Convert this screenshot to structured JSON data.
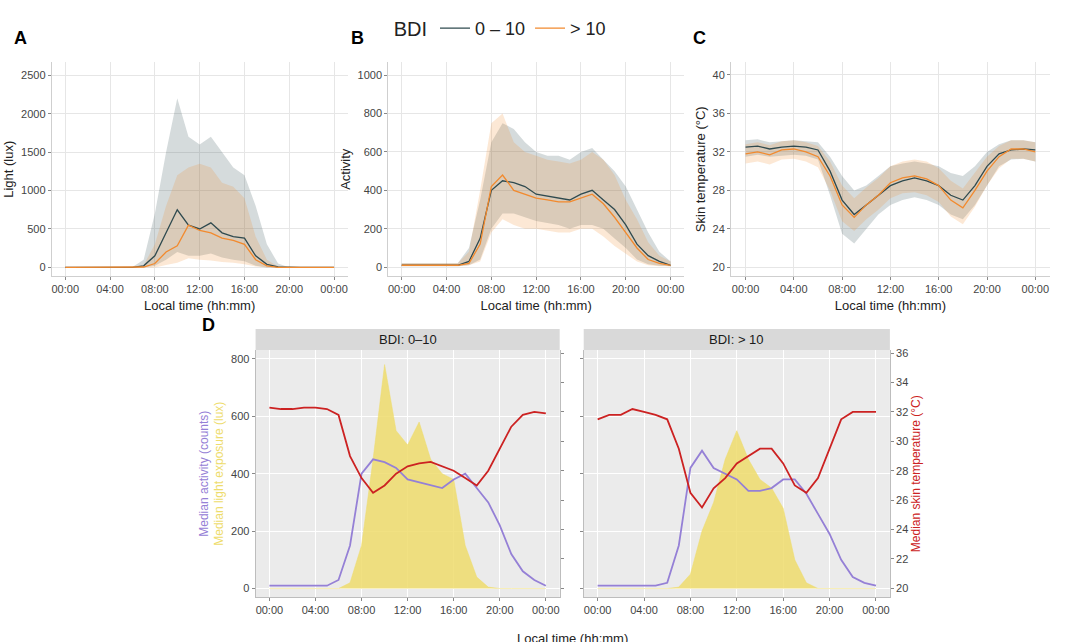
{
  "chart_data": [
    {
      "type": "line",
      "label": "A",
      "legend": "top",
      "legend_title": "BDI",
      "grid": true,
      "xlabel": "Local time (hh:mm)",
      "ylabel": "Light (lux)",
      "x": [
        0,
        1,
        2,
        3,
        4,
        5,
        6,
        7,
        8,
        9,
        10,
        11,
        12,
        13,
        14,
        15,
        16,
        17,
        18,
        19,
        20,
        21,
        22,
        23,
        24
      ],
      "xlim": [
        -1.2,
        25.2
      ],
      "xticks": [
        {
          "value": 0,
          "label": "00:00"
        },
        {
          "value": 4,
          "label": "04:00"
        },
        {
          "value": 8,
          "label": "08:00"
        },
        {
          "value": 12,
          "label": "12:00"
        },
        {
          "value": 16,
          "label": "16:00"
        },
        {
          "value": 20,
          "label": "20:00"
        },
        {
          "value": 24,
          "label": "00:00"
        }
      ],
      "ylim": [
        -115,
        2670
      ],
      "yticks": [
        0,
        500,
        1000,
        1500,
        2000,
        2500
      ],
      "series": [
        {
          "name": "0 – 10",
          "color": "#2f4a4f",
          "values": [
            0,
            0,
            0,
            0,
            0,
            0,
            0,
            20,
            150,
            450,
            750,
            550,
            500,
            580,
            450,
            400,
            380,
            150,
            40,
            5,
            0,
            0,
            0,
            0,
            0
          ],
          "lower": [
            0,
            0,
            0,
            0,
            0,
            0,
            0,
            0,
            20,
            100,
            200,
            150,
            150,
            180,
            130,
            100,
            80,
            20,
            0,
            0,
            0,
            0,
            0,
            0,
            0
          ],
          "upper": [
            0,
            0,
            0,
            0,
            0,
            0,
            5,
            100,
            700,
            1500,
            2200,
            1700,
            1600,
            1700,
            1500,
            1300,
            1200,
            800,
            300,
            50,
            0,
            0,
            0,
            0,
            0
          ]
        },
        {
          "name": "> 10",
          "color": "#f28a2e",
          "values": [
            0,
            0,
            0,
            0,
            0,
            0,
            0,
            5,
            50,
            200,
            280,
            550,
            480,
            450,
            380,
            350,
            300,
            100,
            20,
            0,
            0,
            0,
            0,
            0,
            0
          ],
          "lower": [
            0,
            0,
            0,
            0,
            0,
            0,
            0,
            0,
            0,
            30,
            60,
            120,
            100,
            90,
            70,
            60,
            40,
            10,
            0,
            0,
            0,
            0,
            0,
            0,
            0
          ],
          "upper": [
            0,
            0,
            0,
            0,
            0,
            0,
            0,
            30,
            300,
            800,
            1200,
            1300,
            1350,
            1300,
            1100,
            1050,
            900,
            400,
            100,
            10,
            0,
            0,
            0,
            0,
            0
          ]
        }
      ]
    },
    {
      "type": "line",
      "label": "B",
      "grid": true,
      "xlabel": "Local time (hh:mm)",
      "ylabel": "Activity",
      "x": [
        0,
        1,
        2,
        3,
        4,
        5,
        6,
        7,
        8,
        9,
        10,
        11,
        12,
        13,
        14,
        15,
        16,
        17,
        18,
        19,
        20,
        21,
        22,
        23,
        24
      ],
      "xlim": [
        -1.2,
        25.2
      ],
      "xticks": [
        {
          "value": 0,
          "label": "00:00"
        },
        {
          "value": 4,
          "label": "04:00"
        },
        {
          "value": 8,
          "label": "08:00"
        },
        {
          "value": 12,
          "label": "12:00"
        },
        {
          "value": 16,
          "label": "16:00"
        },
        {
          "value": 20,
          "label": "20:00"
        },
        {
          "value": 24,
          "label": "00:00"
        }
      ],
      "ylim": [
        -47,
        1067
      ],
      "yticks": [
        0,
        200,
        400,
        600,
        800,
        1000
      ],
      "series": [
        {
          "name": "0 – 10",
          "color": "#2f4a4f",
          "values": [
            10,
            10,
            10,
            8,
            8,
            10,
            30,
            150,
            400,
            450,
            440,
            420,
            380,
            370,
            360,
            350,
            380,
            400,
            350,
            300,
            220,
            120,
            60,
            30,
            10
          ],
          "lower": [
            5,
            5,
            5,
            5,
            5,
            5,
            10,
            40,
            200,
            280,
            280,
            260,
            240,
            230,
            220,
            200,
            220,
            220,
            200,
            150,
            100,
            40,
            15,
            8,
            5
          ],
          "upper": [
            20,
            20,
            20,
            20,
            20,
            20,
            100,
            350,
            650,
            750,
            720,
            650,
            600,
            580,
            580,
            560,
            600,
            620,
            560,
            500,
            420,
            300,
            180,
            80,
            30
          ]
        },
        {
          "name": "> 10",
          "color": "#f28a2e",
          "values": [
            10,
            10,
            10,
            10,
            10,
            10,
            20,
            120,
            420,
            480,
            400,
            380,
            360,
            350,
            340,
            340,
            360,
            380,
            330,
            260,
            180,
            100,
            40,
            20,
            10
          ],
          "lower": [
            5,
            5,
            5,
            5,
            5,
            5,
            10,
            30,
            180,
            250,
            220,
            200,
            200,
            190,
            180,
            180,
            200,
            200,
            160,
            110,
            70,
            30,
            10,
            5,
            5
          ],
          "upper": [
            20,
            20,
            20,
            20,
            20,
            20,
            80,
            400,
            750,
            800,
            650,
            600,
            580,
            560,
            550,
            540,
            560,
            600,
            560,
            480,
            350,
            250,
            130,
            60,
            30
          ]
        }
      ]
    },
    {
      "type": "line",
      "label": "C",
      "grid": true,
      "xlabel": "Local time (hh:mm)",
      "ylabel": "Skin temperature (°C)",
      "x": [
        0,
        1,
        2,
        3,
        4,
        5,
        6,
        7,
        8,
        9,
        10,
        11,
        12,
        13,
        14,
        15,
        16,
        17,
        18,
        19,
        20,
        21,
        22,
        23,
        24
      ],
      "xlim": [
        -1.2,
        25.2
      ],
      "xticks": [
        {
          "value": 0,
          "label": "00:00"
        },
        {
          "value": 4,
          "label": "04:00"
        },
        {
          "value": 8,
          "label": "08:00"
        },
        {
          "value": 12,
          "label": "12:00"
        },
        {
          "value": 16,
          "label": "16:00"
        },
        {
          "value": 20,
          "label": "20:00"
        },
        {
          "value": 24,
          "label": "00:00"
        }
      ],
      "ylim": [
        19.1,
        41.3
      ],
      "yticks": [
        20,
        24,
        28,
        32,
        36,
        40
      ],
      "series": [
        {
          "name": "0 – 10",
          "color": "#2f4a4f",
          "values": [
            32.5,
            32.6,
            32.3,
            32.5,
            32.6,
            32.5,
            32.2,
            30.0,
            27.0,
            25.5,
            26.5,
            27.5,
            28.5,
            29.0,
            29.3,
            29.0,
            28.5,
            27.5,
            27.0,
            28.5,
            30.5,
            31.8,
            32.2,
            32.3,
            32.2
          ],
          "lower": [
            31.5,
            31.7,
            31.5,
            31.6,
            31.7,
            31.6,
            31.2,
            27.5,
            23.5,
            22.5,
            24.0,
            25.5,
            26.5,
            27.0,
            27.3,
            27.0,
            26.5,
            25.5,
            25.0,
            26.5,
            28.5,
            30.5,
            31.2,
            31.3,
            31.0
          ],
          "upper": [
            33.2,
            33.3,
            33.0,
            33.1,
            33.2,
            33.1,
            33.0,
            31.5,
            29.5,
            28.0,
            28.5,
            29.5,
            30.5,
            30.8,
            31.0,
            30.8,
            30.5,
            29.8,
            29.5,
            30.5,
            32.0,
            32.8,
            33.2,
            33.2,
            33.0
          ]
        },
        {
          "name": "> 10",
          "color": "#f28a2e",
          "values": [
            31.8,
            32.0,
            31.7,
            32.2,
            32.3,
            32.0,
            31.5,
            29.5,
            26.5,
            25.2,
            26.5,
            27.5,
            28.8,
            29.3,
            29.5,
            29.2,
            28.5,
            27.0,
            26.2,
            28.0,
            30.0,
            31.5,
            32.3,
            32.3,
            32.0
          ],
          "lower": [
            30.8,
            31.0,
            30.7,
            31.2,
            31.3,
            31.0,
            30.4,
            28.0,
            24.8,
            23.8,
            25.0,
            26.0,
            27.2,
            27.7,
            27.8,
            27.5,
            26.8,
            25.3,
            24.5,
            26.3,
            28.5,
            30.3,
            31.3,
            31.3,
            31.0
          ],
          "upper": [
            32.8,
            33.0,
            32.7,
            33.1,
            33.2,
            33.0,
            32.6,
            31.0,
            28.5,
            27.2,
            28.3,
            29.3,
            30.5,
            31.0,
            31.2,
            31.0,
            30.3,
            29.0,
            28.2,
            29.8,
            31.5,
            32.6,
            33.2,
            33.2,
            33.0
          ]
        }
      ]
    },
    {
      "type": "line",
      "label": "D",
      "title": "BDI: 0–10",
      "grid": true,
      "xlabel": "Local time (hh:mm)",
      "ylabel": [
        "Median activity (counts)",
        "Median light exposure (lux)"
      ],
      "x": [
        0,
        1,
        2,
        3,
        4,
        5,
        6,
        7,
        8,
        9,
        10,
        11,
        12,
        13,
        14,
        15,
        16,
        17,
        18,
        19,
        20,
        21,
        22,
        23,
        24
      ],
      "xlim": [
        -1.2,
        25.2
      ],
      "xticks": [
        {
          "value": 0,
          "label": "00:00"
        },
        {
          "value": 4,
          "label": "04:00"
        },
        {
          "value": 8,
          "label": "08:00"
        },
        {
          "value": 12,
          "label": "12:00"
        },
        {
          "value": 16,
          "label": "16:00"
        },
        {
          "value": 20,
          "label": "20:00"
        },
        {
          "value": 24,
          "label": "00:00"
        }
      ],
      "ylim": [
        -30,
        830
      ],
      "yticks": [
        0,
        200,
        400,
        600,
        800
      ],
      "y2lim": [
        19.4,
        36.2
      ],
      "y2ticks": [
        20,
        22,
        24,
        26,
        28,
        30,
        32,
        34,
        36
      ],
      "series": [
        {
          "type": "line",
          "color": "#9580d6",
          "values": [
            10,
            10,
            10,
            8,
            8,
            10,
            30,
            150,
            400,
            450,
            440,
            420,
            380,
            370,
            360,
            350,
            380,
            400,
            350,
            300,
            220,
            120,
            60,
            30,
            10
          ]
        },
        {
          "type": "area",
          "color": "#eedc6c",
          "values": [
            0,
            0,
            0,
            0,
            0,
            0,
            0,
            20,
            150,
            450,
            780,
            550,
            500,
            580,
            450,
            400,
            380,
            150,
            40,
            5,
            0,
            0,
            0,
            0,
            0
          ]
        },
        {
          "type": "line",
          "color": "#cc2222",
          "axis": "y2",
          "values": [
            32.3,
            32.2,
            32.2,
            32.3,
            32.3,
            32.2,
            31.8,
            29.0,
            27.5,
            26.5,
            27.0,
            27.8,
            28.3,
            28.5,
            28.6,
            28.3,
            28.0,
            27.5,
            27.0,
            28.0,
            29.5,
            31.0,
            31.8,
            32.0,
            31.9
          ]
        }
      ]
    },
    {
      "type": "line",
      "title": "BDI: > 10",
      "grid": true,
      "y2label": "Median skin temperature (°C)",
      "x": [
        0,
        1,
        2,
        3,
        4,
        5,
        6,
        7,
        8,
        9,
        10,
        11,
        12,
        13,
        14,
        15,
        16,
        17,
        18,
        19,
        20,
        21,
        22,
        23,
        24
      ],
      "xlim": [
        -1.2,
        25.2
      ],
      "xticks": [
        {
          "value": 0,
          "label": "00:00"
        },
        {
          "value": 4,
          "label": "04:00"
        },
        {
          "value": 8,
          "label": "08:00"
        },
        {
          "value": 12,
          "label": "12:00"
        },
        {
          "value": 16,
          "label": "16:00"
        },
        {
          "value": 20,
          "label": "20:00"
        },
        {
          "value": 24,
          "label": "00:00"
        }
      ],
      "ylim": [
        -30,
        830
      ],
      "yticks": [
        0,
        200,
        400,
        600,
        800
      ],
      "y2lim": [
        19.4,
        36.2
      ],
      "y2ticks": [
        20,
        22,
        24,
        26,
        28,
        30,
        32,
        34,
        36
      ],
      "series": [
        {
          "type": "line",
          "color": "#9580d6",
          "values": [
            10,
            10,
            10,
            10,
            10,
            10,
            20,
            150,
            420,
            480,
            420,
            400,
            380,
            340,
            340,
            350,
            380,
            380,
            330,
            260,
            190,
            100,
            40,
            20,
            10
          ]
        },
        {
          "type": "area",
          "color": "#eedc6c",
          "values": [
            0,
            0,
            0,
            0,
            0,
            0,
            0,
            5,
            50,
            200,
            300,
            450,
            550,
            450,
            380,
            350,
            280,
            100,
            20,
            0,
            0,
            0,
            0,
            0,
            0
          ]
        },
        {
          "type": "line",
          "color": "#cc2222",
          "axis": "y2",
          "values": [
            31.5,
            31.8,
            31.8,
            32.2,
            32.0,
            31.8,
            31.5,
            29.5,
            26.5,
            25.5,
            26.8,
            27.5,
            28.5,
            29.0,
            29.5,
            29.5,
            28.5,
            27.0,
            26.5,
            27.5,
            29.5,
            31.5,
            32.0,
            32.0,
            32.0
          ]
        }
      ]
    }
  ]
}
